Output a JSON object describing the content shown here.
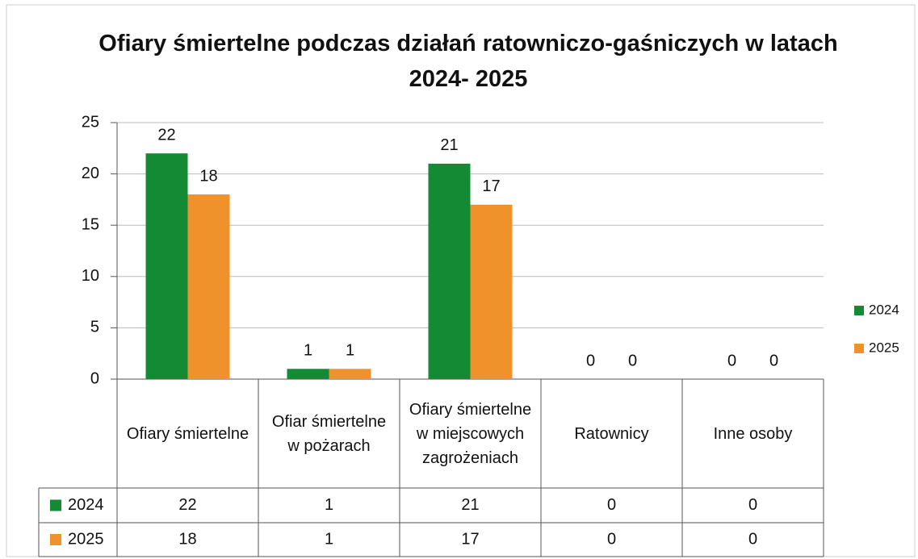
{
  "chart_data": {
    "type": "bar",
    "title": "Ofiary śmiertelne podczas działań ratowniczo-gaśniczych w latach 2024- 2025",
    "categories": [
      "Ofiary śmiertelne",
      "Ofiar śmiertelne w pożarach",
      "Ofiary śmiertelne w miejscowych zagrożeniach",
      "Ratownicy",
      "Inne osoby"
    ],
    "series": [
      {
        "name": "2024",
        "color": "#158a35",
        "values": [
          22,
          1,
          21,
          0,
          0
        ]
      },
      {
        "name": "2025",
        "color": "#f0922b",
        "values": [
          18,
          1,
          17,
          0,
          0
        ]
      }
    ],
    "ylim": [
      0,
      25
    ],
    "yticks": [
      0,
      5,
      10,
      15,
      20,
      25
    ],
    "grid": true,
    "legend": "right"
  }
}
